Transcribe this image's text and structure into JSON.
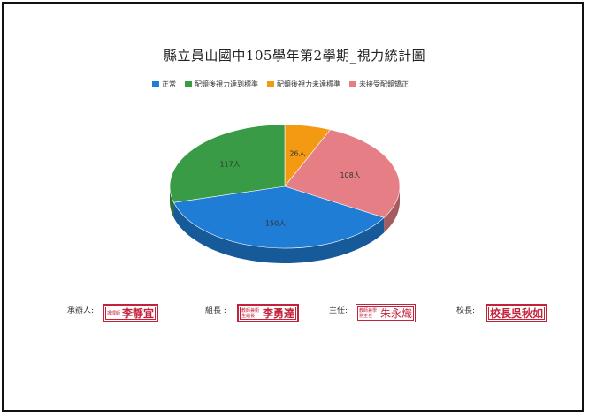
{
  "chart_data": {
    "type": "pie",
    "title": "縣立員山國中105學年第2學期_視力統計圖",
    "categories": [
      "正常",
      "配鏡後視力達到標準",
      "配鏡後視力未達標準",
      "未接受配鏡矯正"
    ],
    "values": [
      150,
      117,
      26,
      108
    ],
    "data_labels": [
      "150人",
      "117人",
      "26人",
      "108人"
    ],
    "colors": [
      "#1f7dd6",
      "#3a9b46",
      "#f39a12",
      "#e57f85"
    ],
    "legend_position": "top",
    "style": "3d"
  },
  "signatures": [
    {
      "label": "承辦人:",
      "stamp_small": "護理師",
      "stamp_name": "李靜宜"
    },
    {
      "label": "組長 :",
      "stamp_small": "教師兼衛生組長",
      "stamp_name": "李勇達"
    },
    {
      "label": "主任:",
      "stamp_small": "教師兼學務主任",
      "stamp_name": "朱永熾"
    },
    {
      "label": "校長:",
      "stamp_small": "校長",
      "stamp_name": "吳秋如"
    }
  ]
}
